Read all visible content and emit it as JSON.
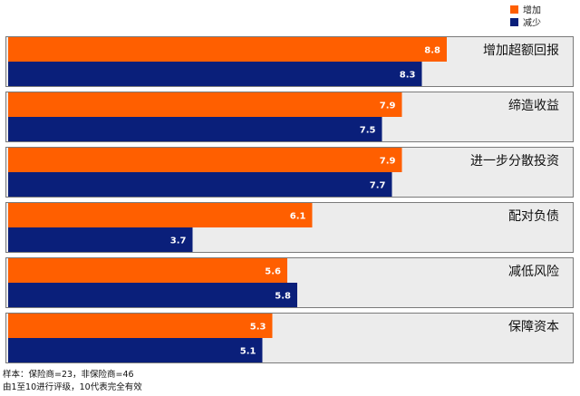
{
  "chart_data": {
    "type": "bar",
    "orientation": "horizontal",
    "categories": [
      "增加超额回报",
      "缔造收益",
      "进一步分散投资",
      "配对负债",
      "减低风险",
      "保障资本"
    ],
    "series": [
      {
        "name": "增加",
        "values": [
          8.8,
          7.9,
          7.9,
          6.1,
          5.6,
          5.3
        ]
      },
      {
        "name": "减少",
        "values": [
          8.3,
          7.5,
          7.7,
          3.7,
          5.8,
          5.1
        ]
      }
    ],
    "xlim": [
      0,
      10
    ],
    "legend_position": "top-right",
    "grid": false
  },
  "colors": {
    "increase": "#FF5F00",
    "decrease": "#0A1F7A",
    "group_bg": "#ECECEC",
    "group_border": "#7A7A7A"
  },
  "footnotes": [
    "样本：保险商=23，非保险商=46",
    "由1至10进行评级，10代表完全有效"
  ]
}
